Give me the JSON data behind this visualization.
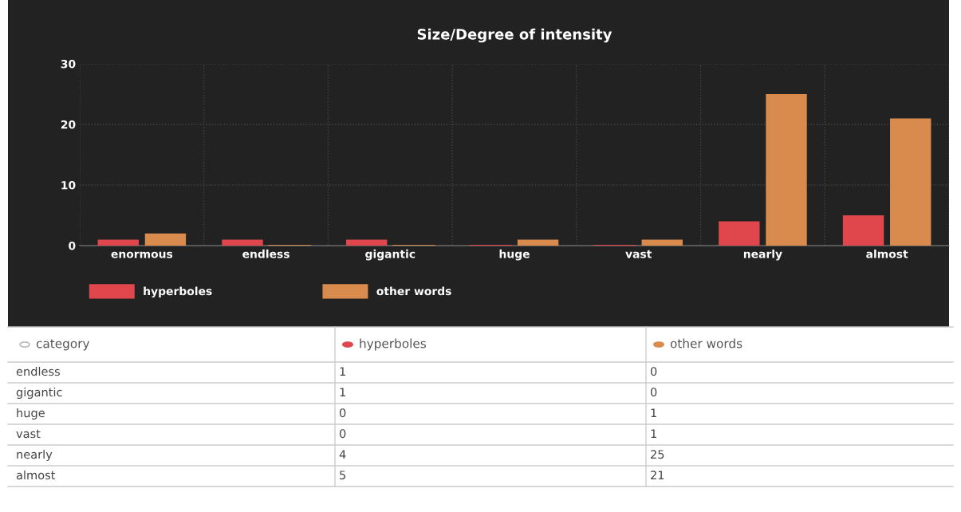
{
  "chart_data": [
    {
      "type": "bar",
      "title": "Size/Degree of intensity",
      "categories": [
        "enormous",
        "endless",
        "gigantic",
        "huge",
        "vast",
        "nearly",
        "almost"
      ],
      "series": [
        {
          "name": "hyperboles",
          "color": "#e0474c",
          "values": [
            1,
            1,
            1,
            0,
            0,
            4,
            5
          ]
        },
        {
          "name": "other words",
          "color": "#d98b4e",
          "values": [
            2,
            0,
            0,
            1,
            1,
            25,
            21
          ]
        }
      ],
      "ylim": [
        0,
        30
      ],
      "yticks": [
        0,
        10,
        20,
        30
      ],
      "grid": true,
      "legend": "bottom"
    },
    {
      "type": "other",
      "annotations": [
        "category",
        "hyperboles",
        "other words",
        "endless",
        "1",
        "0",
        "gigantic",
        "1",
        "0",
        "huge",
        "0",
        "1",
        "vast",
        "0",
        "1",
        "nearly",
        "4",
        "25",
        "almost",
        "5",
        "21"
      ]
    }
  ]
}
